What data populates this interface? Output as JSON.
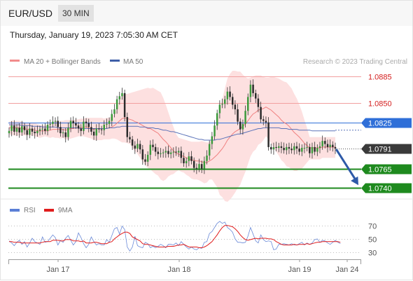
{
  "header": {
    "symbol": "EUR/USD",
    "timeframe": "30 MIN",
    "datetime": "Thursday, January 19, 2023 7:05:30 AM CET"
  },
  "chart_data": [
    {
      "type": "candlestick",
      "legend": [
        {
          "label": "MA 20 + Bollinger Bands",
          "color": "#f28c8c"
        },
        {
          "label": "MA 50",
          "color": "#3f5fa8"
        }
      ],
      "watermark": "Research © 2023 Trading Central",
      "ylim": [
        1.0732,
        1.0892
      ],
      "levels": [
        {
          "value": 1.0885,
          "label": "1.0885",
          "kind": "resistance",
          "color": "#d42020"
        },
        {
          "value": 1.085,
          "label": "1.0850",
          "kind": "resistance",
          "color": "#d42020"
        },
        {
          "value": 1.0825,
          "label": "1.0825",
          "kind": "pivot",
          "color": "#2f6fd8"
        },
        {
          "value": 1.0791,
          "label": "1.0791",
          "kind": "last",
          "color": "#333333"
        },
        {
          "value": 1.0765,
          "label": "1.0765",
          "kind": "support",
          "color": "#1e8a1e"
        },
        {
          "value": 1.074,
          "label": "1.0740",
          "kind": "support",
          "color": "#1e8a1e"
        }
      ],
      "forecast_arrow": {
        "from": 1.0791,
        "to": 1.074
      },
      "closes": [
        1.0814,
        1.0821,
        1.0813,
        1.0818,
        1.0812,
        1.082,
        1.0815,
        1.0809,
        1.0817,
        1.0813,
        1.0811,
        1.0814,
        1.0816,
        1.0817,
        1.0814,
        1.0822,
        1.0823,
        1.0826,
        1.0827,
        1.0819,
        1.0811,
        1.0812,
        1.0806,
        1.0818,
        1.0827,
        1.0824,
        1.0821,
        1.0817,
        1.0814,
        1.0826,
        1.0824,
        1.0819,
        1.0813,
        1.0808,
        1.0817,
        1.0816,
        1.0815,
        1.0822,
        1.0823,
        1.0827,
        1.0836,
        1.0842,
        1.0855,
        1.0859,
        1.0863,
        1.0832,
        1.0806,
        1.0803,
        1.0795,
        1.0791,
        1.0797,
        1.079,
        1.0777,
        1.0774,
        1.0783,
        1.0796,
        1.0793,
        1.0787,
        1.0784,
        1.0785,
        1.0786,
        1.0788,
        1.0784,
        1.0786,
        1.0787,
        1.0786,
        1.0788,
        1.0779,
        1.0772,
        1.0775,
        1.0781,
        1.0775,
        1.0766,
        1.0765,
        1.0771,
        1.0765,
        1.0775,
        1.0782,
        1.0797,
        1.0807,
        1.0821,
        1.0837,
        1.0848,
        1.0849,
        1.0855,
        1.0865,
        1.0858,
        1.0848,
        1.0842,
        1.0826,
        1.0816,
        1.0823,
        1.084,
        1.0858,
        1.0874,
        1.0863,
        1.0856,
        1.0845,
        1.0829,
        1.0827,
        1.0825,
        1.0793,
        1.079,
        1.0793,
        1.0792,
        1.0794,
        1.0792,
        1.0789,
        1.0793,
        1.0791,
        1.0789,
        1.0794,
        1.0791,
        1.0787,
        1.0792,
        1.0792,
        1.0793,
        1.0785,
        1.0793,
        1.0787,
        1.0792,
        1.0794,
        1.0801,
        1.0797,
        1.0793,
        1.0796,
        1.0793,
        1.0791
      ],
      "ma20": [
        1.0818,
        1.0818,
        1.0818,
        1.0818,
        1.0818,
        1.0817,
        1.0817,
        1.0816,
        1.0816,
        1.0816,
        1.0815,
        1.0814,
        1.0814,
        1.0814,
        1.0814,
        1.0814,
        1.0815,
        1.0816,
        1.0816,
        1.0816,
        1.0816,
        1.0816,
        1.0815,
        1.0816,
        1.0817,
        1.0817,
        1.0818,
        1.0818,
        1.0818,
        1.0819,
        1.0819,
        1.0818,
        1.0817,
        1.0816,
        1.0817,
        1.0817,
        1.0817,
        1.0817,
        1.0817,
        1.0818,
        1.0819,
        1.0821,
        1.0824,
        1.0827,
        1.083,
        1.0831,
        1.083,
        1.0829,
        1.0828,
        1.0826,
        1.0825,
        1.0823,
        1.0821,
        1.0819,
        1.0817,
        1.0817,
        1.0815,
        1.0813,
        1.0811,
        1.0807,
        1.0803,
        1.08,
        1.0796,
        1.0792,
        1.0788,
        1.0785,
        1.0784,
        1.0782,
        1.0781,
        1.0779,
        1.0778,
        1.0776,
        1.0776,
        1.0775,
        1.0775,
        1.0774,
        1.0773,
        1.0773,
        1.0775,
        1.0777,
        1.078,
        1.0783,
        1.0787,
        1.0791,
        1.0796,
        1.0802,
        1.0806,
        1.081,
        1.0813,
        1.0815,
        1.0817,
        1.082,
        1.0823,
        1.0827,
        1.0832,
        1.0836,
        1.0838,
        1.0841,
        1.0842,
        1.0843,
        1.0845,
        1.0843,
        1.0841,
        1.0838,
        1.0835,
        1.0832,
        1.0828,
        1.0825,
        1.0823,
        1.082,
        1.0816,
        1.0812,
        1.0809,
        1.0806,
        1.0802,
        1.0798,
        1.0795,
        1.0792,
        1.0792,
        1.0792,
        1.0792,
        1.0792,
        1.0793,
        1.0793,
        1.0793,
        1.0793,
        1.0793,
        1.0793
      ],
      "bb_upper": [
        1.0826,
        1.0827,
        1.0827,
        1.0827,
        1.0827,
        1.0826,
        1.0825,
        1.0824,
        1.0824,
        1.0824,
        1.0824,
        1.0823,
        1.0822,
        1.0821,
        1.0821,
        1.0822,
        1.0824,
        1.0825,
        1.0827,
        1.0827,
        1.0827,
        1.0827,
        1.0828,
        1.0828,
        1.0828,
        1.0828,
        1.0829,
        1.0829,
        1.083,
        1.083,
        1.0831,
        1.0831,
        1.0831,
        1.0831,
        1.0831,
        1.0831,
        1.0831,
        1.083,
        1.0831,
        1.0831,
        1.0833,
        1.0836,
        1.0844,
        1.0853,
        1.0861,
        1.0862,
        1.0862,
        1.0863,
        1.0864,
        1.0865,
        1.0866,
        1.0867,
        1.0868,
        1.0869,
        1.087,
        1.0869,
        1.087,
        1.0868,
        1.0866,
        1.0864,
        1.0857,
        1.0848,
        1.0838,
        1.0828,
        1.0819,
        1.081,
        1.0805,
        1.0804,
        1.0803,
        1.0802,
        1.0801,
        1.08,
        1.08,
        1.08,
        1.08,
        1.0801,
        1.08,
        1.0799,
        1.0799,
        1.0803,
        1.0813,
        1.0826,
        1.0842,
        1.0855,
        1.0869,
        1.0882,
        1.0888,
        1.0892,
        1.0892,
        1.0891,
        1.0891,
        1.0887,
        1.0884,
        1.0882,
        1.0883,
        1.0885,
        1.0886,
        1.0886,
        1.0886,
        1.0884,
        1.0883,
        1.0883,
        1.0884,
        1.0884,
        1.0883,
        1.0882,
        1.088,
        1.0878,
        1.0877,
        1.0873,
        1.0869,
        1.0862,
        1.0856,
        1.0848,
        1.0839,
        1.0828,
        1.0818,
        1.0806,
        1.0806,
        1.0806,
        1.0806,
        1.0806,
        1.0806,
        1.0806,
        1.0806,
        1.0806,
        1.0806,
        1.0806
      ],
      "bb_lower": [
        1.0809,
        1.0809,
        1.0808,
        1.0808,
        1.0808,
        1.0808,
        1.0808,
        1.0808,
        1.0808,
        1.0808,
        1.0807,
        1.0806,
        1.0805,
        1.0806,
        1.0807,
        1.0806,
        1.0805,
        1.0806,
        1.0805,
        1.0805,
        1.0804,
        1.0805,
        1.0803,
        1.0803,
        1.0804,
        1.0805,
        1.0806,
        1.0807,
        1.0807,
        1.0807,
        1.0806,
        1.0805,
        1.0804,
        1.0802,
        1.0802,
        1.0802,
        1.0802,
        1.0803,
        1.0803,
        1.0803,
        1.0804,
        1.0804,
        1.0803,
        1.0801,
        1.0799,
        1.0799,
        1.0798,
        1.0797,
        1.0792,
        1.0788,
        1.0784,
        1.0779,
        1.0774,
        1.077,
        1.0766,
        1.0764,
        1.0761,
        1.0758,
        1.0756,
        1.0751,
        1.0749,
        1.0751,
        1.0755,
        1.0757,
        1.0758,
        1.0761,
        1.0763,
        1.0761,
        1.076,
        1.0757,
        1.0755,
        1.0752,
        1.0751,
        1.0751,
        1.075,
        1.0748,
        1.0746,
        1.0747,
        1.0751,
        1.0751,
        1.0746,
        1.0741,
        1.0731,
        1.0728,
        1.0723,
        1.0722,
        1.0725,
        1.0729,
        1.0734,
        1.074,
        1.0744,
        1.0753,
        1.0761,
        1.0771,
        1.0781,
        1.0787,
        1.079,
        1.0796,
        1.0798,
        1.0802,
        1.0807,
        1.0803,
        1.0798,
        1.0792,
        1.0787,
        1.0782,
        1.0776,
        1.0773,
        1.0768,
        1.0767,
        1.0764,
        1.0762,
        1.0762,
        1.0764,
        1.0765,
        1.0769,
        1.0773,
        1.0777,
        1.0777,
        1.0777,
        1.0777,
        1.0777,
        1.0779,
        1.0779,
        1.0779,
        1.0779,
        1.0779,
        1.0779
      ],
      "ma50": [
        1.0822,
        1.0822,
        1.0822,
        1.0822,
        1.0822,
        1.0821,
        1.0821,
        1.0821,
        1.0821,
        1.082,
        1.082,
        1.082,
        1.082,
        1.0819,
        1.0819,
        1.0819,
        1.0819,
        1.0819,
        1.0819,
        1.0818,
        1.0818,
        1.0818,
        1.0818,
        1.0818,
        1.0818,
        1.0818,
        1.0818,
        1.0818,
        1.0817,
        1.0817,
        1.0817,
        1.0817,
        1.0817,
        1.0817,
        1.0817,
        1.0817,
        1.0817,
        1.0817,
        1.0817,
        1.0818,
        1.0818,
        1.0818,
        1.0819,
        1.0819,
        1.082,
        1.082,
        1.082,
        1.082,
        1.082,
        1.082,
        1.082,
        1.0819,
        1.0819,
        1.0819,
        1.0818,
        1.0818,
        1.0818,
        1.0817,
        1.0817,
        1.0816,
        1.0815,
        1.0815,
        1.0814,
        1.0813,
        1.0813,
        1.0812,
        1.0811,
        1.081,
        1.0809,
        1.0808,
        1.0807,
        1.0806,
        1.0805,
        1.0804,
        1.0803,
        1.0803,
        1.0802,
        1.0802,
        1.0802,
        1.0802,
        1.0802,
        1.0803,
        1.0803,
        1.0804,
        1.0805,
        1.0806,
        1.0807,
        1.0808,
        1.0809,
        1.081,
        1.081,
        1.0811,
        1.0812,
        1.0813,
        1.0814,
        1.0815,
        1.0816,
        1.0817,
        1.0817,
        1.0818,
        1.0818,
        1.0818,
        1.0818,
        1.0818,
        1.0818,
        1.0818,
        1.0817,
        1.0817,
        1.0817,
        1.0816,
        1.0816,
        1.0816,
        1.0816,
        1.0815,
        1.0815,
        1.0815,
        1.0815,
        1.0815,
        1.0814,
        1.0814,
        1.0814,
        1.0814,
        1.0814,
        1.0814,
        1.0814,
        1.0814,
        1.0814,
        1.0814
      ],
      "ma50_projection": 1.0815
    },
    {
      "type": "line",
      "legend": [
        {
          "label": "RSI",
          "color": "#5b7fd6"
        },
        {
          "label": "9MA",
          "color": "#e01c1c"
        }
      ],
      "ylim": [
        24,
        79
      ],
      "yticks": [
        "70",
        "50",
        "30"
      ],
      "ytick_values": [
        70,
        50,
        30
      ],
      "x_ticks": [
        "Jan 17",
        "Jan 18",
        "Jan 19",
        "Jan 24"
      ],
      "rsi": [
        47,
        44,
        40,
        45,
        48,
        42,
        46,
        38,
        44,
        51,
        46,
        44,
        42,
        53,
        45,
        46,
        51,
        56,
        52,
        41,
        48,
        45,
        51,
        55,
        48,
        41,
        46,
        59,
        52,
        43,
        37,
        42,
        53,
        46,
        41,
        43,
        41,
        41,
        49,
        45,
        55,
        65,
        67,
        57,
        69,
        64,
        38,
        32,
        38,
        54,
        40,
        38,
        37,
        45,
        43,
        37,
        39,
        37,
        39,
        42,
        40,
        37,
        42,
        42,
        41,
        44,
        40,
        46,
        42,
        38,
        35,
        38,
        35,
        34,
        37,
        36,
        45,
        46,
        58,
        61,
        67,
        73,
        76,
        73,
        75,
        67,
        64,
        60,
        50,
        45,
        45,
        44,
        45,
        54,
        67,
        57,
        47,
        44,
        56,
        49,
        46,
        47,
        46,
        34,
        35,
        42,
        42,
        43,
        42,
        41,
        43,
        41,
        41,
        43,
        45,
        41,
        44,
        42,
        44,
        49,
        50,
        45,
        48,
        47,
        44,
        42,
        45,
        48,
        45,
        43
      ],
      "ma9": [
        46,
        46,
        45,
        45,
        45,
        44,
        44,
        44,
        44,
        44,
        44,
        44,
        44,
        45,
        46,
        46,
        46,
        48,
        48,
        48,
        47,
        47,
        49,
        49,
        49,
        47,
        47,
        47,
        46,
        47,
        44,
        44,
        44,
        45,
        45,
        44,
        43,
        43,
        43,
        45,
        46,
        50,
        53,
        56,
        58,
        60,
        60,
        58,
        53,
        51,
        49,
        47,
        43,
        42,
        42,
        41,
        40,
        39,
        38,
        38,
        38,
        38,
        39,
        39,
        39,
        40,
        41,
        41,
        42,
        40,
        38,
        38,
        38,
        38,
        37,
        37,
        38,
        40,
        43,
        46,
        51,
        56,
        62,
        67,
        70,
        70,
        69,
        68,
        65,
        61,
        56,
        52,
        49,
        48,
        49,
        50,
        51,
        50,
        51,
        51,
        51,
        50,
        50,
        49,
        46,
        44,
        42,
        41,
        41,
        41,
        41,
        42,
        41,
        42,
        42,
        42,
        43,
        42,
        43,
        44,
        45,
        45,
        46,
        46,
        46,
        46,
        46,
        46,
        46,
        45
      ]
    }
  ]
}
